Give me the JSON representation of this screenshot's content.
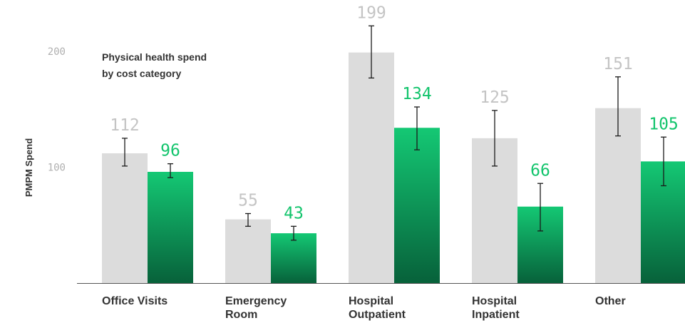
{
  "chart_data": {
    "type": "bar",
    "title_lines": [
      "Physical health spend",
      "by cost category"
    ],
    "ylabel": "PMPM Spend",
    "ylim": [
      0,
      200
    ],
    "yticks": [
      100,
      200
    ],
    "grid": false,
    "categories": [
      [
        "Office Visits"
      ],
      [
        "Emergency",
        "Room"
      ],
      [
        "Hospital",
        "Outpatient"
      ],
      [
        "Hospital",
        "Inpatient"
      ],
      [
        "Other"
      ]
    ],
    "series": [
      {
        "values": [
          112,
          55,
          199,
          125,
          151
        ],
        "labels": [
          "112",
          "55",
          "199",
          "125",
          "151"
        ],
        "error_low": [
          101,
          49,
          177,
          101,
          127
        ],
        "error_high": [
          125,
          60,
          222,
          149,
          178
        ],
        "color": "#dcdcdc",
        "label_color": "#c4c4c4"
      },
      {
        "values": [
          96,
          43,
          134,
          66,
          105
        ],
        "labels": [
          "96",
          "43",
          "134",
          "66",
          "105"
        ],
        "error_low": [
          91,
          37,
          115,
          45,
          84
        ],
        "error_high": [
          103,
          49,
          152,
          86,
          126
        ],
        "color_top": "#14c874",
        "color_bottom": "#07613a",
        "label_color": "#12c46c"
      }
    ]
  }
}
